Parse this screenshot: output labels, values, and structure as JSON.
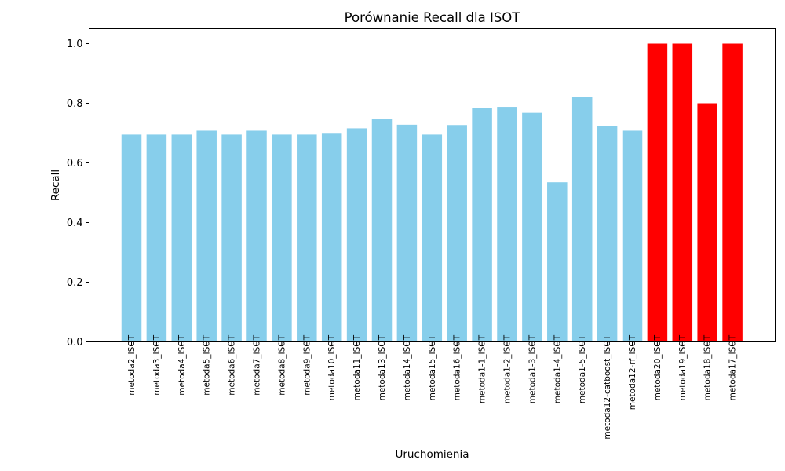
{
  "chart_data": {
    "type": "bar",
    "title": "Porównanie Recall dla ISOT",
    "xlabel": "Uruchomienia",
    "ylabel": "Recall",
    "ylim": [
      0,
      1.05
    ],
    "yticks": [
      "0.0",
      "0.2",
      "0.4",
      "0.6",
      "0.8",
      "1.0"
    ],
    "grid": false,
    "colors": {
      "default": "#87CEEB",
      "highlight": "#FF0000"
    },
    "categories": [
      "metoda2_ISOT",
      "metoda3_ISOT",
      "metoda4_ISOT",
      "metoda5_ISOT",
      "metoda6_ISOT",
      "metoda7_ISOT",
      "metoda8_ISOT",
      "metoda9_ISOT",
      "metoda10_ISOT",
      "metoda11_ISOT",
      "metoda13_ISOT",
      "metoda14_ISOT",
      "metoda15_ISOT",
      "metoda16_ISOT",
      "metoda1-1_ISOT",
      "metoda1-2_ISOT",
      "metoda1-3_ISOT",
      "metoda1-4_ISOT",
      "metoda1-5_ISOT",
      "metoda12-catboost_ISOT",
      "metoda12-rf_ISOT",
      "metoda20_ISOT",
      "metoda19_ISOT",
      "metoda18_ISOT",
      "metoda17_ISOT"
    ],
    "values": [
      0.695,
      0.695,
      0.695,
      0.708,
      0.695,
      0.708,
      0.695,
      0.695,
      0.698,
      0.716,
      0.746,
      0.728,
      0.695,
      0.727,
      0.783,
      0.788,
      0.768,
      0.535,
      0.822,
      0.725,
      0.708,
      1.0,
      1.0,
      0.8,
      1.0
    ],
    "highlighted": [
      "metoda20_ISOT",
      "metoda19_ISOT",
      "metoda18_ISOT",
      "metoda17_ISOT"
    ]
  }
}
